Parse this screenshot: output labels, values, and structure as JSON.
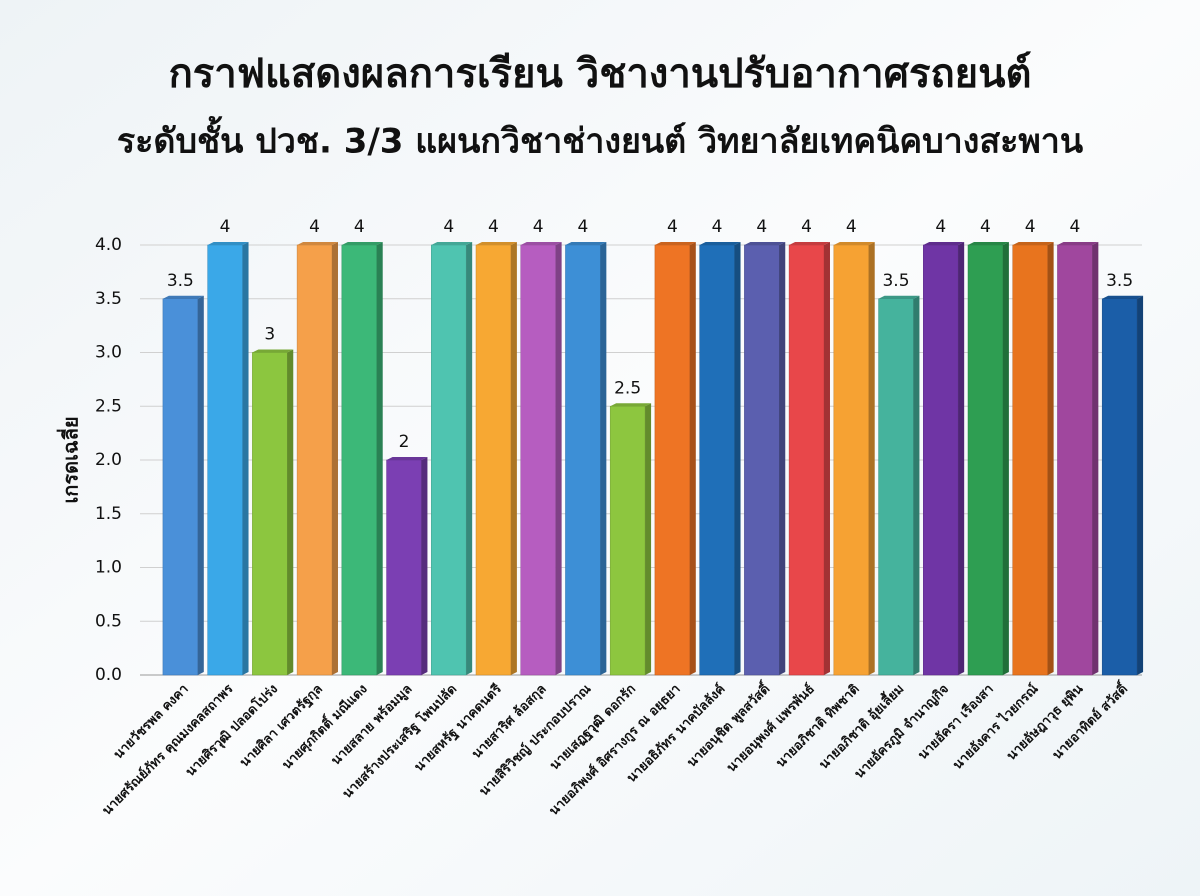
{
  "chart_data": {
    "type": "bar",
    "title": "กราฟแสดงผลการเรียน วิชางานปรับอากาศรถยนต์",
    "subtitle": "ระดับชั้น ปวช. 3/3 แผนกวิชาช่างยนต์ วิทยาลัยเทคนิคบางสะพาน",
    "y_label": "เกรดเฉลี่ย",
    "categories": [
      "นายวัชรพล คงคา",
      "นายศรัณย์ภัทร คุณมงคลสถาพร",
      "นายศิรวุฒิ ปลอดโปร่ง",
      "นายศิลา เศวตรัฐกุล",
      "นายศุภกิตติ์ มณีแดง",
      "นายสลาย พร้อมมูล",
      "นายสร้างประเสริฐ โพนปลัด",
      "นายสหรัฐ นาคดนตรี",
      "นายสาริศ ล้อสกุล",
      "นายสิริวิชญ์ ประกอบปราณ",
      "นายเสฏฐวุฒิ ดอกรัก",
      "นายอภิพงศ์ อิศรางกูร ณ อยุธยา",
      "นายอธิภัทร นาคบัลลังค์",
      "นายอนุชิต พูลสวัสดิ์",
      "นายอนุพงศ์ แพรพันธ์",
      "นายอภิชาติ ทิพชาติ",
      "นายอภิชาติ อุ้ยเลี้ยม",
      "นายอัครภูมิ จำนาญกิจ",
      "นายอัครา เรืองสา",
      "นายอังคาร ไวยกรณ์",
      "นายอัษฎาวุธ ยุพิน",
      "นายอาทิตย์ สวัสดิ์"
    ],
    "values": [
      3.5,
      4,
      3,
      4,
      4,
      2,
      4,
      4,
      4,
      4,
      2.5,
      4,
      4,
      4,
      4,
      4,
      3.5,
      4,
      4,
      4,
      4,
      3.5
    ],
    "colors": [
      "#4a90d9",
      "#3aa8e8",
      "#8cc63f",
      "#f5a04a",
      "#3cb878",
      "#7b3fb3",
      "#4fc4b0",
      "#f7a833",
      "#b65dc0",
      "#3d8fd6",
      "#8dc63f",
      "#ee7424",
      "#1f6fb8",
      "#5b5faf",
      "#e8474a",
      "#f6a233",
      "#45b39d",
      "#6f35a5",
      "#2e9e52",
      "#e8741e",
      "#a0479e",
      "#1b5ea8"
    ],
    "ylim": [
      0,
      4
    ],
    "yticks": [
      {
        "value": 0,
        "label": "0.0"
      },
      {
        "value": 0.5,
        "label": "0.5"
      },
      {
        "value": 1,
        "label": "1.0"
      },
      {
        "value": 1.5,
        "label": "1.5"
      },
      {
        "value": 2,
        "label": "2.0"
      },
      {
        "value": 2.5,
        "label": "2.5"
      },
      {
        "value": 3,
        "label": "3.0"
      },
      {
        "value": 3.5,
        "label": "3.5"
      },
      {
        "value": 4,
        "label": "4.0"
      }
    ],
    "grid": true
  }
}
